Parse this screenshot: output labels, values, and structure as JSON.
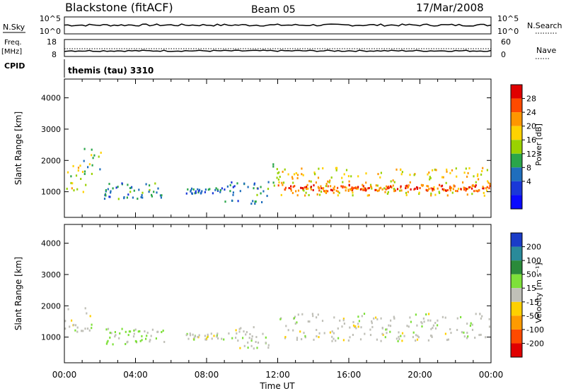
{
  "header": {
    "station": "Blackstone (fitACF)",
    "beam": "Beam 05",
    "date": "17/Mar/2008"
  },
  "status_panels": {
    "nsky_label": "N.Sky",
    "nsky_ticks": [
      "10^5",
      "10^0"
    ],
    "nsearch_label": "N.Search",
    "nsearch_ticks": [
      "10^5",
      "10^0"
    ],
    "freq_label": "Freq.",
    "freq_unit": "[MHz]",
    "freq_ticks": [
      "18",
      "8"
    ],
    "nave_label": "Nave",
    "nave_ticks": [
      "60",
      "0"
    ],
    "cpid_label": "CPID",
    "cpid_value": "themis (tau) 3310"
  },
  "power_scale": {
    "title": "Power [dB]",
    "ticks": [
      "28",
      "24",
      "20",
      "16",
      "12",
      "8",
      "4"
    ],
    "colors": [
      "#e00000",
      "#ff4a00",
      "#ff9600",
      "#ffd200",
      "#9ad200",
      "#2aa64a",
      "#1f6ebd",
      "#1a38d8",
      "#0a0aff"
    ]
  },
  "velocity_scale": {
    "title": "Velocity [m s⁻¹]",
    "ticks": [
      "200",
      "100",
      "50",
      "15",
      "-15",
      "-50",
      "-100",
      "-200"
    ],
    "colors": [
      "#1a3cc8",
      "#2a8a9a",
      "#2a8a3a",
      "#7ee03a",
      "#c0c0b8",
      "#ffd000",
      "#ff9a00",
      "#ff4a00",
      "#e00000"
    ]
  },
  "chart_data": [
    {
      "type": "heatmap",
      "name": "power",
      "xlabel": "Time UT",
      "ylabel": "Slant Range [km]",
      "x_ticks": [
        "00:00",
        "04:00",
        "08:00",
        "12:00",
        "16:00",
        "20:00",
        "00:00"
      ],
      "x_range_hours": [
        0,
        24
      ],
      "y_range_km": [
        180,
        4600
      ],
      "y_ticks": [
        1000,
        2000,
        3000,
        4000
      ],
      "scatter_regions": [
        {
          "t": [
            0.0,
            1.2
          ],
          "r": [
            1000,
            1900
          ],
          "value": 18
        },
        {
          "t": [
            1.0,
            2.1
          ],
          "r": [
            1600,
            2500
          ],
          "value": 14
        },
        {
          "t": [
            2.2,
            5.6
          ],
          "r": [
            800,
            1300
          ],
          "value": 10
        },
        {
          "t": [
            6.8,
            9.0
          ],
          "r": [
            950,
            1150
          ],
          "value": 8
        },
        {
          "t": [
            9.0,
            11.5
          ],
          "r": [
            650,
            1350
          ],
          "value": 10
        },
        {
          "t": [
            11.5,
            12.0
          ],
          "r": [
            1100,
            2400
          ],
          "value": 14
        },
        {
          "t": [
            12.0,
            24.0
          ],
          "r": [
            900,
            1800
          ],
          "value": 20
        },
        {
          "t": [
            12.0,
            24.0
          ],
          "r": [
            1050,
            1250
          ],
          "value": 28
        }
      ]
    },
    {
      "type": "heatmap",
      "name": "velocity",
      "xlabel": "Time UT",
      "ylabel": "Slant Range [km]",
      "x_ticks": [
        "00:00",
        "04:00",
        "08:00",
        "12:00",
        "16:00",
        "20:00",
        "00:00"
      ],
      "x_range_hours": [
        0,
        24
      ],
      "y_range_km": [
        180,
        4600
      ],
      "y_ticks": [
        1000,
        2000,
        3000,
        4000
      ],
      "scatter_regions": [
        {
          "t": [
            0.0,
            1.5
          ],
          "r": [
            1200,
            2000
          ],
          "value": 0
        },
        {
          "t": [
            2.2,
            5.6
          ],
          "r": [
            800,
            1300
          ],
          "value": 20
        },
        {
          "t": [
            6.8,
            9.0
          ],
          "r": [
            950,
            1150
          ],
          "value": 0
        },
        {
          "t": [
            9.0,
            11.5
          ],
          "r": [
            650,
            1350
          ],
          "value": 0
        },
        {
          "t": [
            12.0,
            24.0
          ],
          "r": [
            900,
            1800
          ],
          "value": 0
        }
      ]
    }
  ]
}
